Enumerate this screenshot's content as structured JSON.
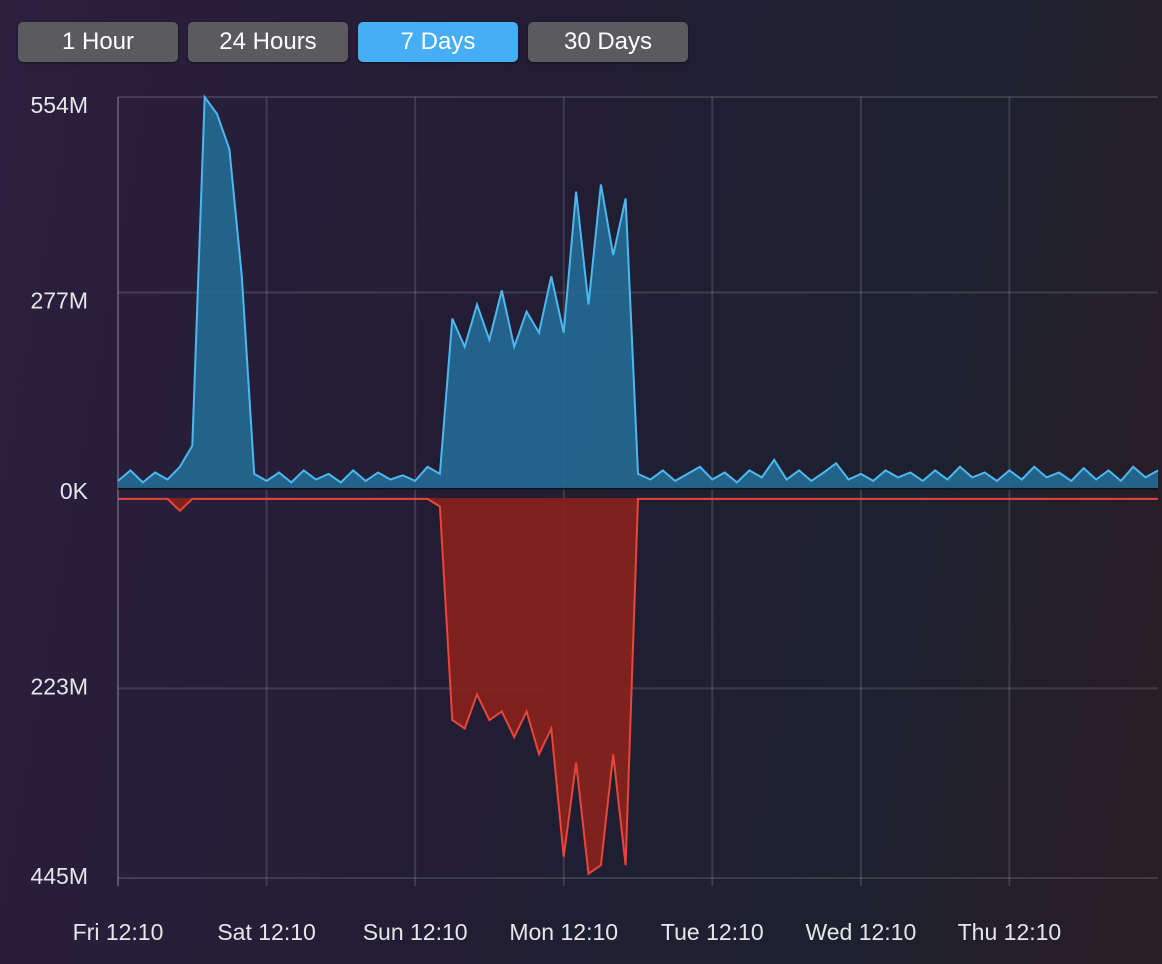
{
  "buttons": [
    {
      "label": "1 Hour",
      "color": "#5b5b5f"
    },
    {
      "label": "24 Hours",
      "color": "#5b5b5f"
    },
    {
      "label": "7 Days",
      "color": "#45aef5"
    },
    {
      "label": "30 Days",
      "color": "#5b5b5f"
    }
  ],
  "chart_data": {
    "type": "area",
    "x": [
      0,
      2,
      4,
      6,
      8,
      10,
      12,
      14,
      16,
      18,
      20,
      22,
      24,
      26,
      28,
      30,
      32,
      34,
      36,
      38,
      40,
      42,
      44,
      46,
      48,
      50,
      52,
      54,
      56,
      58,
      60,
      62,
      64,
      66,
      68,
      70,
      72,
      74,
      76,
      78,
      80,
      82,
      84,
      86,
      88,
      90,
      92,
      94,
      96,
      98,
      100,
      102,
      104,
      106,
      108,
      110,
      112,
      114,
      116,
      118,
      120,
      122,
      124,
      126,
      128,
      130,
      132,
      134,
      136,
      138,
      140,
      142,
      144,
      146,
      148,
      150,
      152,
      154,
      156,
      158,
      160,
      162,
      164,
      166,
      168
    ],
    "xlim": [
      0,
      168
    ],
    "xticks": [
      {
        "value": 0,
        "label": "Fri 12:10"
      },
      {
        "value": 24,
        "label": "Sat 12:10"
      },
      {
        "value": 48,
        "label": "Sun 12:10"
      },
      {
        "value": 72,
        "label": "Mon 12:10"
      },
      {
        "value": 96,
        "label": "Tue 12:10"
      },
      {
        "value": 120,
        "label": "Wed 12:10"
      },
      {
        "value": 144,
        "label": "Thu 12:10"
      }
    ],
    "ylim": [
      0,
      554
    ],
    "yticks": [
      {
        "value": 0,
        "label": "0K"
      },
      {
        "value": 277,
        "label": "277M"
      },
      {
        "value": 554,
        "label": "554M"
      }
    ],
    "y2lim": [
      0,
      445
    ],
    "y2_inverted": true,
    "y2ticks": [
      {
        "value": 223,
        "label": "223M"
      },
      {
        "value": 445,
        "label": "445M"
      }
    ],
    "grid": true,
    "series": [
      {
        "color": "#4db8f0",
        "values": [
          10,
          25,
          8,
          22,
          12,
          30,
          60,
          554,
          530,
          480,
          300,
          20,
          10,
          22,
          8,
          25,
          12,
          20,
          8,
          25,
          10,
          22,
          12,
          18,
          10,
          30,
          20,
          240,
          200,
          260,
          210,
          280,
          200,
          250,
          220,
          300,
          220,
          420,
          260,
          430,
          330,
          410,
          20,
          12,
          25,
          10,
          20,
          30,
          12,
          22,
          8,
          25,
          15,
          40,
          12,
          25,
          10,
          22,
          35,
          12,
          20,
          10,
          25,
          15,
          22,
          10,
          25,
          12,
          30,
          15,
          22,
          10,
          25,
          12,
          30,
          15,
          22,
          10,
          28,
          12,
          25,
          10,
          30,
          15,
          25
        ]
      },
      {
        "color": "#e8463a",
        "axis": "y2",
        "values": [
          1,
          1,
          1,
          1,
          1,
          15,
          1,
          1,
          1,
          1,
          1,
          1,
          1,
          1,
          1,
          1,
          1,
          1,
          1,
          1,
          1,
          1,
          1,
          1,
          1,
          1,
          10,
          260,
          270,
          230,
          260,
          250,
          280,
          250,
          300,
          270,
          420,
          310,
          440,
          430,
          300,
          430,
          1,
          1,
          1,
          1,
          1,
          1,
          1,
          1,
          1,
          1,
          1,
          1,
          1,
          1,
          1,
          1,
          1,
          1,
          1,
          1,
          1,
          1,
          1,
          1,
          1,
          1,
          1,
          1,
          1,
          1,
          1,
          1,
          1,
          1,
          1,
          1,
          1,
          1,
          1,
          1,
          1,
          1,
          1
        ]
      }
    ]
  }
}
